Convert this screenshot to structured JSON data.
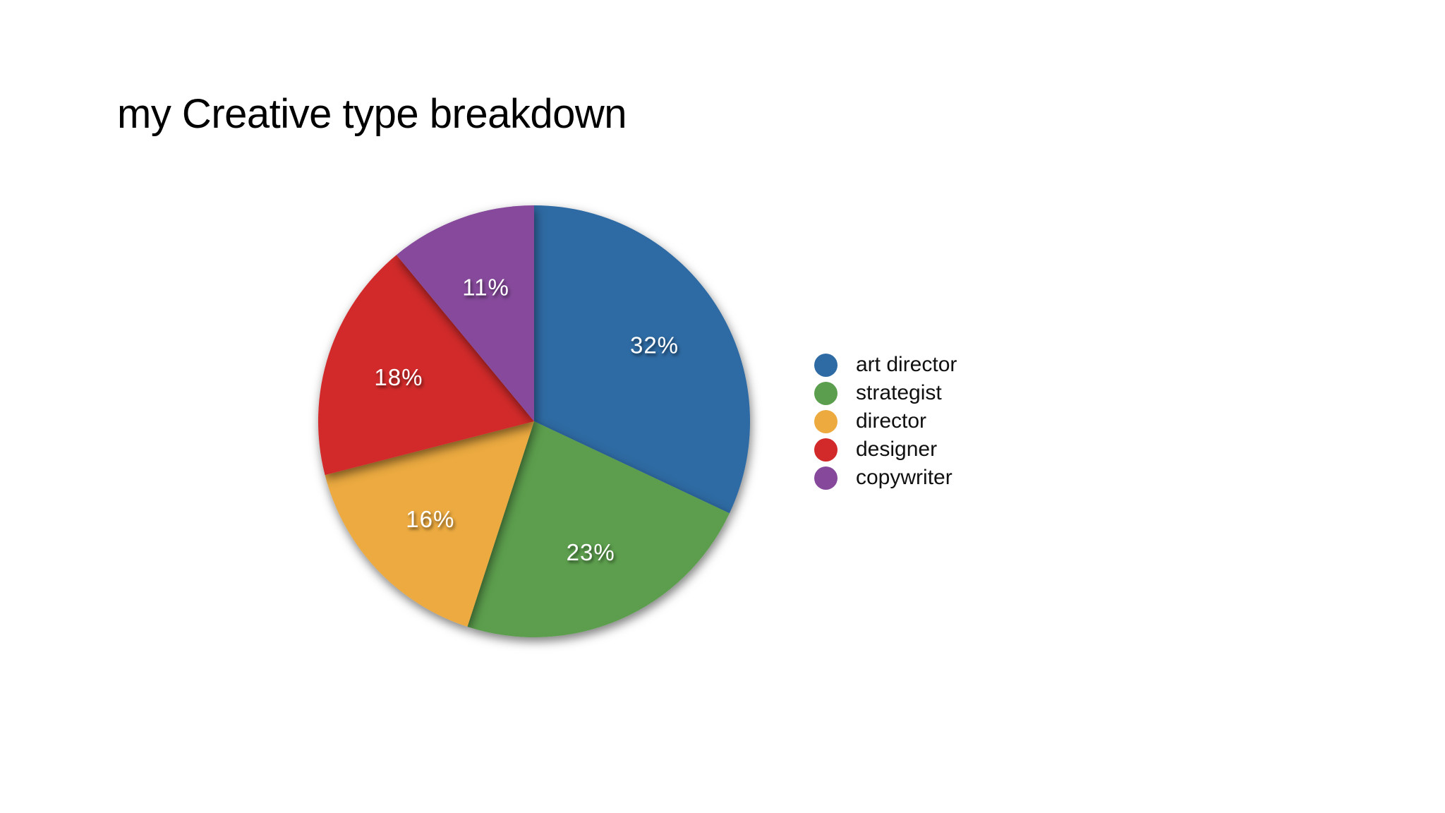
{
  "header": {
    "title": "my Creative type breakdown"
  },
  "chart_data": {
    "type": "pie",
    "title": "my Creative type breakdown",
    "categories": [
      "art director",
      "strategist",
      "director",
      "designer",
      "copywriter"
    ],
    "values": [
      32,
      23,
      16,
      18,
      11
    ],
    "value_labels": [
      "32%",
      "23%",
      "16%",
      "18%",
      "11%"
    ],
    "colors": [
      "#2e6aa3",
      "#5b9e4d",
      "#ecaa3f",
      "#d2292a",
      "#86489b"
    ],
    "total": 100,
    "start_angle_deg": 0,
    "direction": "clockwise",
    "label_position": "inside",
    "label_radius_ratio": 0.66,
    "legend_position": "right",
    "background_color": "#ffffff",
    "label_text_color": "#ffffff",
    "legend_text_color": "#101010"
  }
}
